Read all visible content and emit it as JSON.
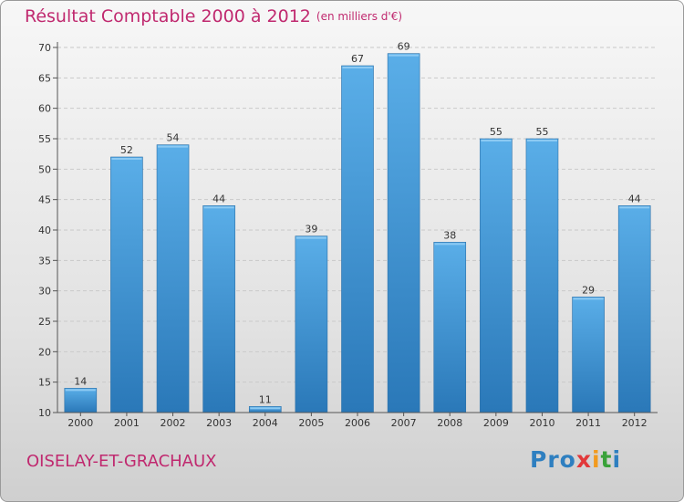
{
  "header": {
    "title": "Résultat Comptable 2000 à 2012",
    "subtitle": "(en milliers d'€)"
  },
  "footer": {
    "commune": "OISELAY-ET-GRACHAUX",
    "logo": [
      "Pro",
      "x",
      "i",
      "t",
      "i"
    ]
  },
  "colors": {
    "accent": "#c0296f",
    "bar_top": "#5aaee8",
    "bar_bottom": "#2a78b8"
  },
  "chart_data": {
    "type": "bar",
    "title": "Résultat Comptable 2000 à 2012",
    "subtitle": "(en milliers d'€)",
    "xlabel": "",
    "ylabel": "",
    "categories": [
      "2000",
      "2001",
      "2002",
      "2003",
      "2004",
      "2005",
      "2006",
      "2007",
      "2008",
      "2009",
      "2010",
      "2011",
      "2012"
    ],
    "values": [
      14,
      52,
      54,
      44,
      11,
      39,
      67,
      69,
      38,
      55,
      55,
      29,
      44
    ],
    "ylim": [
      10,
      70
    ],
    "yticks": [
      10,
      15,
      20,
      25,
      30,
      35,
      40,
      45,
      50,
      55,
      60,
      65,
      70
    ],
    "grid": true,
    "legend": "none"
  }
}
